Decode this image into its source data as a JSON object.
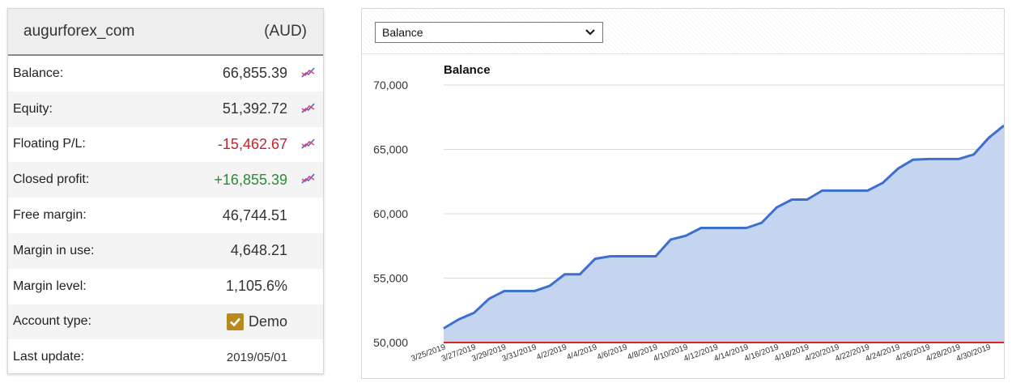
{
  "account": {
    "name": "augurforex_com",
    "currency": "(AUD)",
    "rows": [
      {
        "label": "Balance:",
        "value": "66,855.39",
        "style": "normal",
        "trend": true
      },
      {
        "label": "Equity:",
        "value": "51,392.72",
        "style": "normal",
        "trend": true
      },
      {
        "label": "Floating P/L:",
        "value": "-15,462.67",
        "style": "neg",
        "trend": true
      },
      {
        "label": "Closed profit:",
        "value": "+16,855.39",
        "style": "pos",
        "trend": true
      },
      {
        "label": "Free margin:",
        "value": "46,744.51",
        "style": "normal",
        "trend": false
      },
      {
        "label": "Margin in use:",
        "value": "4,648.21",
        "style": "normal",
        "trend": false
      },
      {
        "label": "Margin level:",
        "value": "1,105.6%",
        "style": "normal",
        "trend": false
      },
      {
        "label": "Account type:",
        "value": "Demo",
        "style": "demo",
        "trend": false
      },
      {
        "label": "Last update:",
        "value": "2019/05/01",
        "style": "small",
        "trend": false
      }
    ]
  },
  "chart_selector": {
    "selected": "Balance"
  },
  "colors": {
    "line": "#3b6fd0",
    "fill": "#c5d4ef",
    "baseline": "#d7261e",
    "negative": "#c8232c",
    "positive": "#2e8b37",
    "checkbox": "#b8891d"
  },
  "chart_data": {
    "type": "area",
    "title": "Balance",
    "ylim": [
      50000,
      70000
    ],
    "yticks": [
      "70,000",
      "65,000",
      "60,000",
      "55,000",
      "50,000"
    ],
    "ytick_values": [
      70000,
      65000,
      60000,
      55000,
      50000
    ],
    "x_tick_labels": [
      "3/25/2019",
      "3/27/2019",
      "3/29/2019",
      "3/31/2019",
      "4/2/2019",
      "4/4/2019",
      "4/6/2019",
      "4/8/2019",
      "4/10/2019",
      "4/12/2019",
      "4/14/2019",
      "4/16/2019",
      "4/18/2019",
      "4/20/2019",
      "4/22/2019",
      "4/24/2019",
      "4/26/2019",
      "4/28/2019",
      "4/30/2019"
    ],
    "x": [
      "3/25/2019",
      "3/26/2019",
      "3/27/2019",
      "3/28/2019",
      "3/29/2019",
      "3/30/2019",
      "3/31/2019",
      "4/1/2019",
      "4/2/2019",
      "4/3/2019",
      "4/4/2019",
      "4/5/2019",
      "4/6/2019",
      "4/7/2019",
      "4/8/2019",
      "4/9/2019",
      "4/10/2019",
      "4/11/2019",
      "4/12/2019",
      "4/13/2019",
      "4/14/2019",
      "4/15/2019",
      "4/16/2019",
      "4/17/2019",
      "4/18/2019",
      "4/19/2019",
      "4/20/2019",
      "4/21/2019",
      "4/22/2019",
      "4/23/2019",
      "4/24/2019",
      "4/25/2019",
      "4/26/2019",
      "4/27/2019",
      "4/28/2019",
      "4/29/2019",
      "4/30/2019",
      "5/1/2019"
    ],
    "series": [
      {
        "values": [
          51100,
          51800,
          52300,
          53400,
          54000,
          54000,
          54000,
          54400,
          55300,
          55300,
          56500,
          56700,
          56700,
          56700,
          56700,
          58000,
          58300,
          58900,
          58900,
          58900,
          58900,
          59300,
          60500,
          61100,
          61100,
          61800,
          61800,
          61800,
          61800,
          62400,
          63500,
          64200,
          64250,
          64250,
          64250,
          64600,
          65900,
          66855
        ]
      }
    ],
    "baseline": 50000,
    "grid": true
  }
}
